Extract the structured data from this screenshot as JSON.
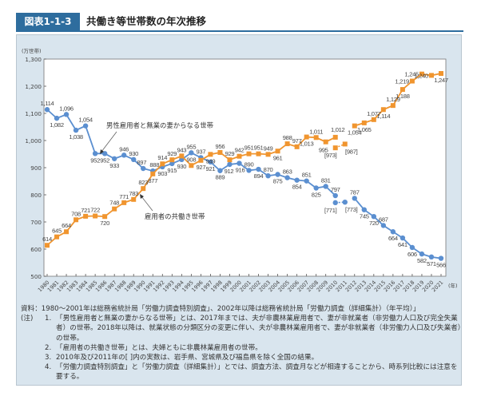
{
  "figure": {
    "number": "図表1-1-3",
    "title": "共働き等世帯数の年次推移"
  },
  "chart_data": {
    "type": "line",
    "title": "共働き等世帯数の年次推移",
    "ylabel": "(万世帯)",
    "xlabel": "(年)",
    "ylim": [
      500,
      1300
    ],
    "yticks": [
      500,
      600,
      700,
      800,
      900,
      1000,
      1100,
      1200,
      1300
    ],
    "ytick_labels": [
      "500",
      "600",
      "700",
      "800",
      "900",
      "1,000",
      "1,100",
      "1,200",
      "1,300"
    ],
    "x": [
      1980,
      1981,
      1982,
      1983,
      1984,
      1985,
      1986,
      1987,
      1988,
      1989,
      1990,
      1991,
      1992,
      1993,
      1994,
      1995,
      1996,
      1997,
      1998,
      1999,
      2000,
      2001,
      2002,
      2003,
      2004,
      2005,
      2006,
      2007,
      2008,
      2009,
      2010,
      2011,
      2012,
      2013,
      2014,
      2015,
      2016,
      2017,
      2018,
      2019,
      2020,
      2021
    ],
    "grid": false,
    "series": [
      {
        "name": "男性雇用者と無業の妻からなる世帯",
        "color": "#5b8fd0",
        "marker": "circle",
        "values": [
          1114,
          1082,
          1096,
          1038,
          1054,
          952,
          952,
          933,
          946,
          930,
          897,
          888,
          903,
          915,
          930,
          955,
          937,
          921,
          889,
          912,
          916,
          890,
          894,
          870,
          875,
          863,
          854,
          851,
          825,
          831,
          797,
          null,
          787,
          745,
          720,
          687,
          664,
          641,
          606,
          582,
          571,
          566
        ],
        "labels": [
          "1,114",
          "1,082",
          "1,096",
          "1,038",
          "1,054",
          "952",
          "952",
          "933",
          "946",
          "930",
          "897",
          "888",
          "903",
          "915",
          "930",
          "955",
          "937",
          "921",
          "889",
          "912",
          "916",
          "890",
          "894",
          "870",
          "875",
          "863",
          "854",
          "851",
          "825",
          "831",
          "797",
          "",
          "787",
          "745",
          "720",
          "687",
          "664",
          "641",
          "606",
          "582",
          "571",
          "566"
        ],
        "bracketed": [
          {
            "x": 2010,
            "value": 771,
            "label": "[771]"
          },
          {
            "x": 2011,
            "value": 773,
            "label": "[773]"
          }
        ]
      },
      {
        "name": "雇用者の共働き世帯",
        "color": "#f0952f",
        "marker": "square",
        "values": [
          614,
          645,
          664,
          708,
          721,
          722,
          720,
          748,
          771,
          783,
          823,
          877,
          914,
          929,
          943,
          908,
          927,
          949,
          956,
          929,
          942,
          951,
          951,
          949,
          961,
          988,
          977,
          1013,
          1011,
          995,
          1012,
          null,
          1054,
          1065,
          1077,
          1114,
          1129,
          1188,
          1219,
          1245,
          1240,
          1247
        ],
        "labels": [
          "614",
          "645",
          "664",
          "708",
          "721",
          "722",
          "720",
          "748",
          "771",
          "783",
          "823",
          "877",
          "914",
          "929",
          "943",
          "908",
          "927",
          "949",
          "956",
          "929",
          "942",
          "951",
          "951",
          "949",
          "961",
          "988",
          "977",
          "1,013",
          "1,011",
          "995",
          "1,012",
          "",
          "1,054",
          "1,065",
          "1,077",
          "1,114",
          "1,129",
          "1,188",
          "1,219",
          "1,245",
          "1,240",
          "1,247"
        ],
        "bracketed": [
          {
            "x": 2010,
            "value": 973,
            "label": "[973]"
          },
          {
            "x": 2011,
            "value": 987,
            "label": "[987]"
          }
        ]
      }
    ]
  },
  "notes": {
    "source": "資料：1980～2001年は総務省統計局「労働力調査特別調査」、2002年以降は総務省統計局「労働力調査（詳細集計）（年平均）」",
    "head": "(注)",
    "items": [
      {
        "num": "1.",
        "text": "「男性雇用者と無業の妻からなる世帯」とは、2017年までは、夫が非農林業雇用者で、妻が非就業者（非労働力人口及び完全失業者）の世帯。2018年以降は、就業状態の分類区分の変更に伴い、夫が非農林業雇用者で、妻が非就業者（非労働力人口及び失業者）の世帯。"
      },
      {
        "num": "2.",
        "text": "「雇用者の共働き世帯」とは、夫婦ともに非農林業雇用者の世帯。"
      },
      {
        "num": "3.",
        "text": "2010年及び2011年の[ ]内の実数は、岩手県、宮城県及び福島県を除く全国の結果。"
      },
      {
        "num": "4.",
        "text": "「労働力調査特別調査」と「労働力調査（詳細集計）」とでは、調査方法、調査月などが相違することから、時系列比較には注意を要する。"
      }
    ]
  }
}
